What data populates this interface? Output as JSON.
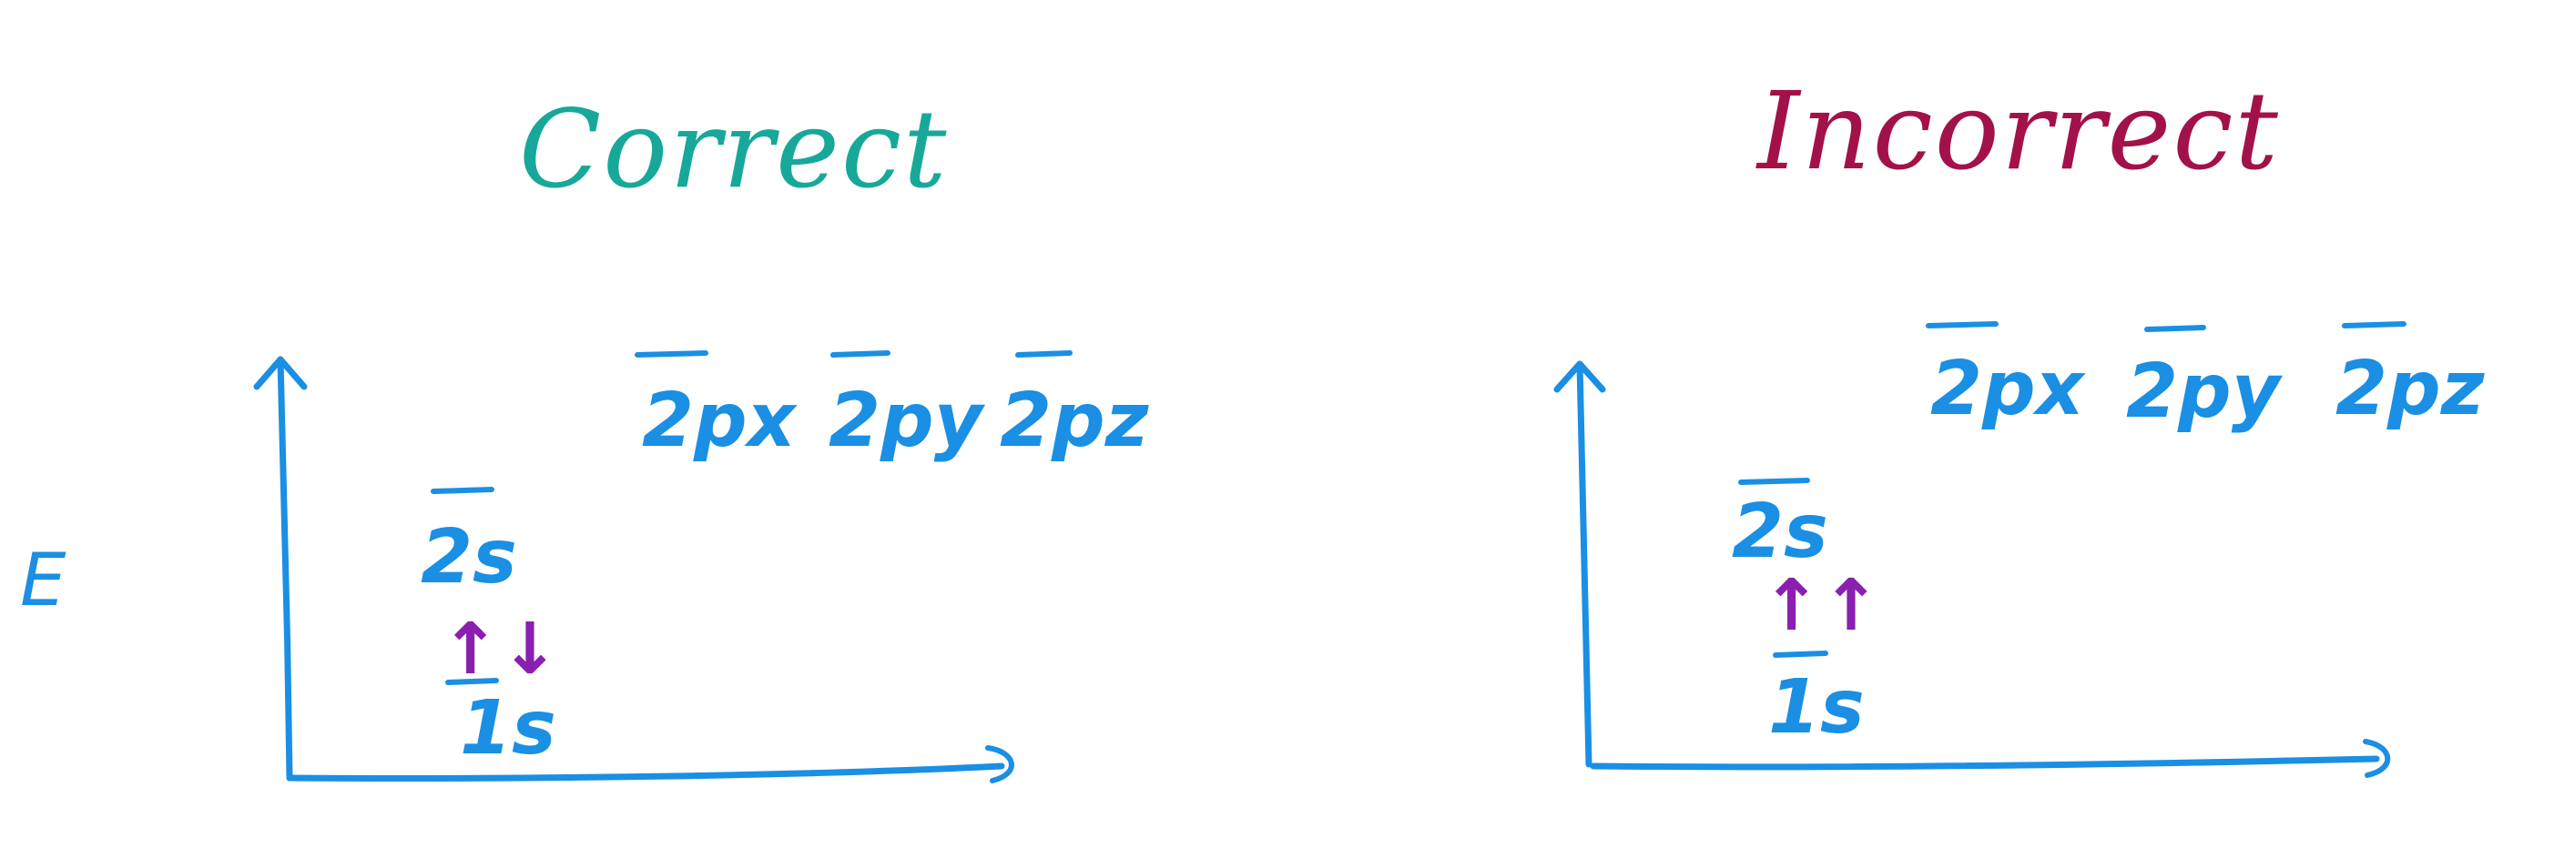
{
  "colors": {
    "ink_blue": "#1a8fe3",
    "correct_title": "#17a89a",
    "incorrect_title": "#a3114a",
    "electron_purple": "#8a1fb0"
  },
  "energy_axis_label": "E",
  "panels": [
    {
      "title": "Correct",
      "orbitals": {
        "s1": "1s",
        "s2": "2s",
        "px": "2px",
        "py": "2py",
        "pz": "2pz"
      },
      "electrons_1s": "↑↓"
    },
    {
      "title": "Incorrect",
      "orbitals": {
        "s1": "1s",
        "s2": "2s",
        "px": "2px",
        "py": "2py",
        "pz": "2pz"
      },
      "electrons_1s": "↑↑"
    }
  ]
}
